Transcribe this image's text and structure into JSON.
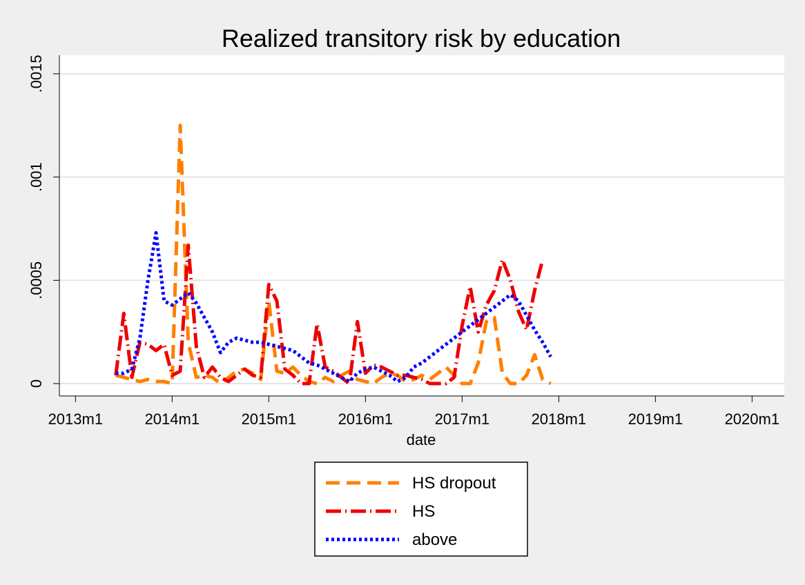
{
  "chart_data": {
    "type": "line",
    "title": "Realized transitory risk by education",
    "xlabel": "date",
    "ylabel": "",
    "x_ticks": [
      "2013m1",
      "2014m1",
      "2015m1",
      "2016m1",
      "2017m1",
      "2018m1",
      "2019m1",
      "2020m1"
    ],
    "y_ticks": [
      "0",
      ".0005",
      ".001",
      ".0015"
    ],
    "xlim": [
      "2012m11",
      "2020m5"
    ],
    "ylim": [
      -6e-05,
      0.00159
    ],
    "grid": true,
    "legend_position": "bottom",
    "series": [
      {
        "name": "HS dropout",
        "color": "#ff8000",
        "style": "dash",
        "x": [
          "2013m6",
          "2013m7",
          "2013m8",
          "2013m9",
          "2013m10",
          "2013m11",
          "2013m12",
          "2014m1",
          "2014m2",
          "2014m3",
          "2014m4",
          "2014m5",
          "2014m6",
          "2014m7",
          "2014m8",
          "2014m9",
          "2014m10",
          "2014m11",
          "2014m12",
          "2015m1",
          "2015m2",
          "2015m3",
          "2015m4",
          "2015m5",
          "2015m6",
          "2015m7",
          "2015m8",
          "2015m9",
          "2015m10",
          "2015m11",
          "2015m12",
          "2016m1",
          "2016m2",
          "2016m3",
          "2016m4",
          "2016m5",
          "2016m6",
          "2016m7",
          "2016m8",
          "2016m9",
          "2016m10",
          "2016m11",
          "2016m12",
          "2017m1",
          "2017m2",
          "2017m3",
          "2017m4",
          "2017m5",
          "2017m6",
          "2017m7",
          "2017m8",
          "2017m9",
          "2017m10",
          "2017m11",
          "2017m12"
        ],
        "y": [
          4e-05,
          3e-05,
          2e-05,
          1e-05,
          2e-05,
          1e-05,
          1e-05,
          0.0,
          0.00125,
          0.0002,
          3e-05,
          4e-05,
          3e-05,
          0.0,
          3e-05,
          6e-05,
          7e-05,
          5e-05,
          2e-05,
          0.0004,
          6e-05,
          5e-05,
          8e-05,
          4e-05,
          1e-05,
          0.0,
          3e-05,
          1e-05,
          4e-05,
          6e-05,
          2e-05,
          1e-05,
          0.0,
          3e-05,
          5e-05,
          4e-05,
          1e-05,
          2e-05,
          4e-05,
          2e-05,
          5e-05,
          8e-05,
          4e-05,
          0.0,
          0.0,
          0.0001,
          0.0003,
          0.00032,
          5e-05,
          0.0,
          0.0,
          4e-05,
          0.00014,
          2e-05,
          0.0
        ]
      },
      {
        "name": "HS",
        "color": "#ee0000",
        "style": "dashdot",
        "x": [
          "2013m6",
          "2013m7",
          "2013m8",
          "2013m9",
          "2013m10",
          "2013m11",
          "2013m12",
          "2014m1",
          "2014m2",
          "2014m3",
          "2014m4",
          "2014m5",
          "2014m6",
          "2014m7",
          "2014m8",
          "2014m9",
          "2014m10",
          "2014m11",
          "2014m12",
          "2015m1",
          "2015m2",
          "2015m3",
          "2015m4",
          "2015m5",
          "2015m6",
          "2015m7",
          "2015m8",
          "2015m9",
          "2015m10",
          "2015m11",
          "2015m12",
          "2016m1",
          "2016m2",
          "2016m3",
          "2016m4",
          "2016m5",
          "2016m6",
          "2016m7",
          "2016m8",
          "2016m9",
          "2016m10",
          "2016m11",
          "2016m12",
          "2017m1",
          "2017m2",
          "2017m3",
          "2017m4",
          "2017m5",
          "2017m6",
          "2017m7",
          "2017m8",
          "2017m9",
          "2017m10",
          "2017m11"
        ],
        "y": [
          4e-05,
          0.00034,
          3e-05,
          0.0002,
          0.00019,
          0.00016,
          0.00019,
          4e-05,
          6e-05,
          0.00067,
          0.00018,
          3e-05,
          8e-05,
          3e-05,
          1e-05,
          4e-05,
          7e-05,
          4e-05,
          3e-05,
          0.00048,
          0.0004,
          7e-05,
          4e-05,
          0.0,
          0.0,
          0.00029,
          8e-05,
          6e-05,
          3e-05,
          0.0,
          0.0003,
          5e-05,
          9e-05,
          8e-05,
          6e-05,
          4e-05,
          4e-05,
          3e-05,
          2e-05,
          0.0,
          0.0,
          0.0,
          3e-05,
          0.00028,
          0.00047,
          0.00025,
          0.00038,
          0.00045,
          0.0006,
          0.0005,
          0.00035,
          0.00026,
          0.00045,
          0.0006
        ]
      },
      {
        "name": "above",
        "color": "#0000ff",
        "style": "dot",
        "x": [
          "2013m6",
          "2013m7",
          "2013m8",
          "2013m9",
          "2013m10",
          "2013m11",
          "2013m12",
          "2014m1",
          "2014m2",
          "2014m3",
          "2014m4",
          "2014m5",
          "2014m6",
          "2014m7",
          "2014m8",
          "2014m9",
          "2014m10",
          "2014m11",
          "2014m12",
          "2015m1",
          "2015m2",
          "2015m3",
          "2015m4",
          "2015m5",
          "2015m6",
          "2015m7",
          "2015m8",
          "2015m9",
          "2015m10",
          "2015m11",
          "2015m12",
          "2016m1",
          "2016m2",
          "2016m3",
          "2016m4",
          "2016m5",
          "2016m6",
          "2016m7",
          "2016m8",
          "2016m9",
          "2016m10",
          "2016m11",
          "2016m12",
          "2017m1",
          "2017m2",
          "2017m3",
          "2017m4",
          "2017m5",
          "2017m6",
          "2017m7",
          "2017m8",
          "2017m9",
          "2017m10",
          "2017m11",
          "2017m12"
        ],
        "y": [
          5e-05,
          5e-05,
          7e-05,
          0.00022,
          0.0005,
          0.00073,
          0.0004,
          0.00038,
          0.00041,
          0.00044,
          0.00039,
          0.00032,
          0.00025,
          0.00015,
          0.0002,
          0.00022,
          0.00021,
          0.0002,
          0.0002,
          0.00019,
          0.00018,
          0.00017,
          0.00016,
          0.00013,
          0.0001,
          9e-05,
          7e-05,
          5e-05,
          3e-05,
          1e-05,
          5e-05,
          7e-05,
          8e-05,
          6e-05,
          4e-05,
          1e-05,
          3e-05,
          8e-05,
          0.0001,
          0.00013,
          0.00016,
          0.00019,
          0.00022,
          0.00025,
          0.00028,
          0.00031,
          0.00034,
          0.00037,
          0.0004,
          0.00043,
          0.0004,
          0.00033,
          0.00026,
          0.0002,
          0.00013
        ]
      }
    ]
  }
}
